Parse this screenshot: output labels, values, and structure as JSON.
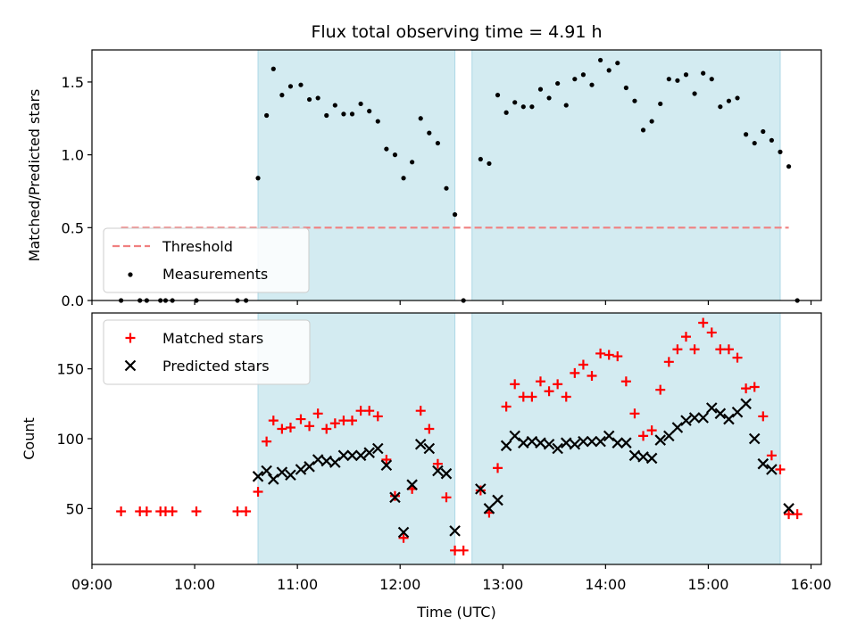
{
  "title": "Flux total observing time = 4.91 h",
  "colors": {
    "shade": "#d3ebf1",
    "shade_edge": "#add8e6",
    "threshold": "#f08080",
    "measurements": "#000000",
    "matched": "#ff0000",
    "predicted": "#000000"
  },
  "chart_data": [
    {
      "type": "scatter",
      "panel": "top",
      "ylabel": "Matched/Predicted stars",
      "xlabel": "",
      "ylim": [
        0,
        1.72
      ],
      "xlim": [
        "09:00",
        "16:06"
      ],
      "yticks": [
        "0.0",
        "0.5",
        "1.0",
        "1.5"
      ],
      "shaded_intervals": [
        [
          "10:37",
          "12:32"
        ],
        [
          "12:42",
          "15:42"
        ]
      ],
      "legend_position": "lower-left",
      "threshold": {
        "name": "Threshold",
        "y": 0.5,
        "x_range": [
          "09:17",
          "15:47"
        ]
      },
      "series": [
        {
          "name": "Measurements",
          "points": [
            [
              "09:17",
              0.0
            ],
            [
              "09:28",
              0.0
            ],
            [
              "09:32",
              0.0
            ],
            [
              "09:40",
              0.0
            ],
            [
              "09:43",
              0.0
            ],
            [
              "09:47",
              0.0
            ],
            [
              "10:01",
              0.0
            ],
            [
              "10:25",
              0.0
            ],
            [
              "10:30",
              0.0
            ],
            [
              "10:37",
              0.84
            ],
            [
              "10:42",
              1.27
            ],
            [
              "10:46",
              1.59
            ],
            [
              "10:51",
              1.41
            ],
            [
              "10:56",
              1.47
            ],
            [
              "11:02",
              1.48
            ],
            [
              "11:07",
              1.38
            ],
            [
              "11:12",
              1.39
            ],
            [
              "11:17",
              1.27
            ],
            [
              "11:22",
              1.34
            ],
            [
              "11:27",
              1.28
            ],
            [
              "11:32",
              1.28
            ],
            [
              "11:37",
              1.35
            ],
            [
              "11:42",
              1.3
            ],
            [
              "11:47",
              1.23
            ],
            [
              "11:52",
              1.04
            ],
            [
              "11:57",
              1.0
            ],
            [
              "12:02",
              0.84
            ],
            [
              "12:07",
              0.95
            ],
            [
              "12:12",
              1.25
            ],
            [
              "12:17",
              1.15
            ],
            [
              "12:22",
              1.08
            ],
            [
              "12:27",
              0.77
            ],
            [
              "12:32",
              0.59
            ],
            [
              "12:37",
              0.0
            ],
            [
              "12:47",
              0.97
            ],
            [
              "12:52",
              0.94
            ],
            [
              "12:57",
              1.41
            ],
            [
              "13:02",
              1.29
            ],
            [
              "13:07",
              1.36
            ],
            [
              "13:12",
              1.33
            ],
            [
              "13:17",
              1.33
            ],
            [
              "13:22",
              1.45
            ],
            [
              "13:27",
              1.39
            ],
            [
              "13:32",
              1.49
            ],
            [
              "13:37",
              1.34
            ],
            [
              "13:42",
              1.52
            ],
            [
              "13:47",
              1.55
            ],
            [
              "13:52",
              1.48
            ],
            [
              "13:57",
              1.65
            ],
            [
              "14:02",
              1.58
            ],
            [
              "14:07",
              1.63
            ],
            [
              "14:12",
              1.46
            ],
            [
              "14:17",
              1.37
            ],
            [
              "14:22",
              1.17
            ],
            [
              "14:27",
              1.23
            ],
            [
              "14:32",
              1.35
            ],
            [
              "14:37",
              1.52
            ],
            [
              "14:42",
              1.51
            ],
            [
              "14:47",
              1.55
            ],
            [
              "14:52",
              1.42
            ],
            [
              "14:57",
              1.56
            ],
            [
              "15:02",
              1.52
            ],
            [
              "15:07",
              1.33
            ],
            [
              "15:12",
              1.37
            ],
            [
              "15:17",
              1.39
            ],
            [
              "15:22",
              1.14
            ],
            [
              "15:27",
              1.08
            ],
            [
              "15:32",
              1.16
            ],
            [
              "15:37",
              1.1
            ],
            [
              "15:42",
              1.02
            ],
            [
              "15:47",
              0.92
            ],
            [
              "15:52",
              0.0
            ]
          ]
        }
      ]
    },
    {
      "type": "scatter",
      "panel": "bottom",
      "xlabel": "Time (UTC)",
      "ylabel": "Count",
      "ylim": [
        10,
        190
      ],
      "xlim": [
        "09:00",
        "16:06"
      ],
      "xticks": [
        "09:00",
        "10:00",
        "11:00",
        "12:00",
        "13:00",
        "14:00",
        "15:00",
        "16:00"
      ],
      "yticks": [
        "50",
        "100",
        "150"
      ],
      "shaded_intervals": [
        [
          "10:37",
          "12:32"
        ],
        [
          "12:42",
          "15:42"
        ]
      ],
      "legend_position": "upper-left",
      "series": [
        {
          "name": "Matched stars",
          "marker": "plus",
          "points": [
            [
              "09:17",
              48
            ],
            [
              "09:28",
              48
            ],
            [
              "09:32",
              48
            ],
            [
              "09:40",
              48
            ],
            [
              "09:43",
              48
            ],
            [
              "09:47",
              48
            ],
            [
              "10:01",
              48
            ],
            [
              "10:25",
              48
            ],
            [
              "10:30",
              48
            ],
            [
              "10:37",
              62
            ],
            [
              "10:42",
              98
            ],
            [
              "10:46",
              113
            ],
            [
              "10:51",
              107
            ],
            [
              "10:56",
              108
            ],
            [
              "11:02",
              114
            ],
            [
              "11:07",
              109
            ],
            [
              "11:12",
              118
            ],
            [
              "11:17",
              107
            ],
            [
              "11:22",
              111
            ],
            [
              "11:27",
              113
            ],
            [
              "11:32",
              113
            ],
            [
              "11:37",
              120
            ],
            [
              "11:42",
              120
            ],
            [
              "11:47",
              116
            ],
            [
              "11:52",
              85
            ],
            [
              "11:57",
              59
            ],
            [
              "12:02",
              29
            ],
            [
              "12:07",
              64
            ],
            [
              "12:12",
              120
            ],
            [
              "12:17",
              107
            ],
            [
              "12:22",
              82
            ],
            [
              "12:27",
              58
            ],
            [
              "12:32",
              20
            ],
            [
              "12:37",
              20
            ],
            [
              "12:47",
              63
            ],
            [
              "12:52",
              47
            ],
            [
              "12:57",
              79
            ],
            [
              "13:02",
              123
            ],
            [
              "13:07",
              139
            ],
            [
              "13:12",
              130
            ],
            [
              "13:17",
              130
            ],
            [
              "13:22",
              141
            ],
            [
              "13:27",
              134
            ],
            [
              "13:32",
              139
            ],
            [
              "13:37",
              130
            ],
            [
              "13:42",
              147
            ],
            [
              "13:47",
              153
            ],
            [
              "13:52",
              145
            ],
            [
              "13:57",
              161
            ],
            [
              "14:02",
              160
            ],
            [
              "14:07",
              159
            ],
            [
              "14:12",
              141
            ],
            [
              "14:17",
              118
            ],
            [
              "14:22",
              102
            ],
            [
              "14:27",
              106
            ],
            [
              "14:32",
              135
            ],
            [
              "14:37",
              155
            ],
            [
              "14:42",
              164
            ],
            [
              "14:47",
              173
            ],
            [
              "14:52",
              164
            ],
            [
              "14:57",
              183
            ],
            [
              "15:02",
              176
            ],
            [
              "15:07",
              164
            ],
            [
              "15:12",
              164
            ],
            [
              "15:17",
              158
            ],
            [
              "15:22",
              136
            ],
            [
              "15:27",
              137
            ],
            [
              "15:32",
              116
            ],
            [
              "15:37",
              88
            ],
            [
              "15:42",
              78
            ],
            [
              "15:47",
              46
            ],
            [
              "15:52",
              46
            ]
          ]
        },
        {
          "name": "Predicted stars",
          "marker": "x",
          "points": [
            [
              "10:37",
              73
            ],
            [
              "10:42",
              77
            ],
            [
              "10:46",
              71
            ],
            [
              "10:51",
              76
            ],
            [
              "10:56",
              74
            ],
            [
              "11:02",
              78
            ],
            [
              "11:07",
              80
            ],
            [
              "11:12",
              85
            ],
            [
              "11:17",
              84
            ],
            [
              "11:22",
              83
            ],
            [
              "11:27",
              88
            ],
            [
              "11:32",
              88
            ],
            [
              "11:37",
              88
            ],
            [
              "11:42",
              90
            ],
            [
              "11:47",
              93
            ],
            [
              "11:52",
              81
            ],
            [
              "11:57",
              58
            ],
            [
              "12:02",
              33
            ],
            [
              "12:07",
              67
            ],
            [
              "12:12",
              96
            ],
            [
              "12:17",
              93
            ],
            [
              "12:22",
              77
            ],
            [
              "12:27",
              75
            ],
            [
              "12:32",
              34
            ],
            [
              "12:47",
              64
            ],
            [
              "12:52",
              50
            ],
            [
              "12:57",
              56
            ],
            [
              "13:02",
              95
            ],
            [
              "13:07",
              102
            ],
            [
              "13:12",
              97
            ],
            [
              "13:17",
              98
            ],
            [
              "13:22",
              97
            ],
            [
              "13:27",
              96
            ],
            [
              "13:32",
              93
            ],
            [
              "13:37",
              97
            ],
            [
              "13:42",
              96
            ],
            [
              "13:47",
              98
            ],
            [
              "13:52",
              98
            ],
            [
              "13:57",
              98
            ],
            [
              "14:02",
              102
            ],
            [
              "14:07",
              97
            ],
            [
              "14:12",
              97
            ],
            [
              "14:17",
              88
            ],
            [
              "14:22",
              87
            ],
            [
              "14:27",
              86
            ],
            [
              "14:32",
              99
            ],
            [
              "14:37",
              102
            ],
            [
              "14:42",
              108
            ],
            [
              "14:47",
              113
            ],
            [
              "14:52",
              115
            ],
            [
              "14:57",
              115
            ],
            [
              "15:02",
              122
            ],
            [
              "15:07",
              118
            ],
            [
              "15:12",
              114
            ],
            [
              "15:17",
              119
            ],
            [
              "15:22",
              125
            ],
            [
              "15:27",
              100
            ],
            [
              "15:32",
              82
            ],
            [
              "15:37",
              78
            ],
            [
              "15:47",
              50
            ]
          ]
        }
      ]
    }
  ]
}
